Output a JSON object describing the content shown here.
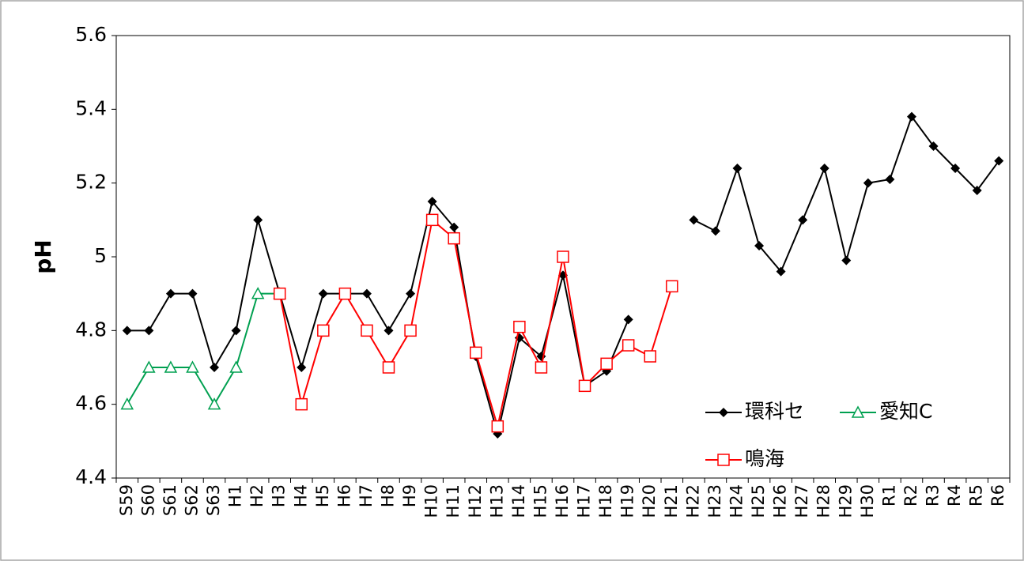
{
  "chart_data": {
    "type": "line",
    "y_label": "pH",
    "categories": [
      "S59",
      "S60",
      "S61",
      "S62",
      "S63",
      "H1",
      "H2",
      "H3",
      "H4",
      "H5",
      "H6",
      "H7",
      "H8",
      "H9",
      "H10",
      "H11",
      "H12",
      "H13",
      "H14",
      "H15",
      "H16",
      "H17",
      "H18",
      "H19",
      "H20",
      "H21",
      "H22",
      "H23",
      "H24",
      "H25",
      "H26",
      "H27",
      "H28",
      "H29",
      "H30",
      "R1",
      "R2",
      "R3",
      "R4",
      "R5",
      "R6"
    ],
    "series": [
      {
        "name": "環科セ",
        "color": "#000000",
        "marker": "diamond",
        "values": [
          4.8,
          4.8,
          4.9,
          4.9,
          4.7,
          4.8,
          5.1,
          4.9,
          4.7,
          4.9,
          4.9,
          4.9,
          4.8,
          4.9,
          5.15,
          5.08,
          4.73,
          4.52,
          4.78,
          4.73,
          4.95,
          4.65,
          4.69,
          4.83,
          null,
          null,
          5.1,
          5.07,
          5.24,
          5.03,
          4.96,
          5.1,
          5.24,
          4.99,
          5.2,
          5.21,
          5.38,
          5.3,
          5.24,
          5.18,
          5.26
        ]
      },
      {
        "name": "愛知C",
        "color": "#00a050",
        "marker": "triangle",
        "values": [
          4.6,
          4.7,
          4.7,
          4.7,
          4.6,
          4.7,
          4.9,
          4.9,
          null,
          null,
          null,
          null,
          null,
          null,
          null,
          null,
          null,
          null,
          null,
          null,
          null,
          null,
          null,
          null,
          null,
          null,
          null,
          null,
          null,
          null,
          null,
          null,
          null,
          null,
          null,
          null,
          null,
          null,
          null,
          null,
          null
        ]
      },
      {
        "name": "鳴海",
        "color": "#ff0000",
        "marker": "square",
        "values": [
          null,
          null,
          null,
          null,
          null,
          null,
          null,
          4.9,
          4.6,
          4.8,
          4.9,
          4.8,
          4.7,
          4.8,
          5.1,
          5.05,
          4.74,
          4.54,
          4.81,
          4.7,
          5.0,
          4.65,
          4.71,
          4.76,
          4.73,
          4.92,
          null,
          null,
          null,
          null,
          null,
          null,
          null,
          null,
          null,
          null,
          null,
          null,
          null,
          null,
          null
        ]
      }
    ],
    "ylim": [
      4.4,
      5.6
    ],
    "yticks": [
      4.4,
      4.6,
      4.8,
      5,
      5.2,
      5.4,
      5.6
    ],
    "grid": false
  }
}
